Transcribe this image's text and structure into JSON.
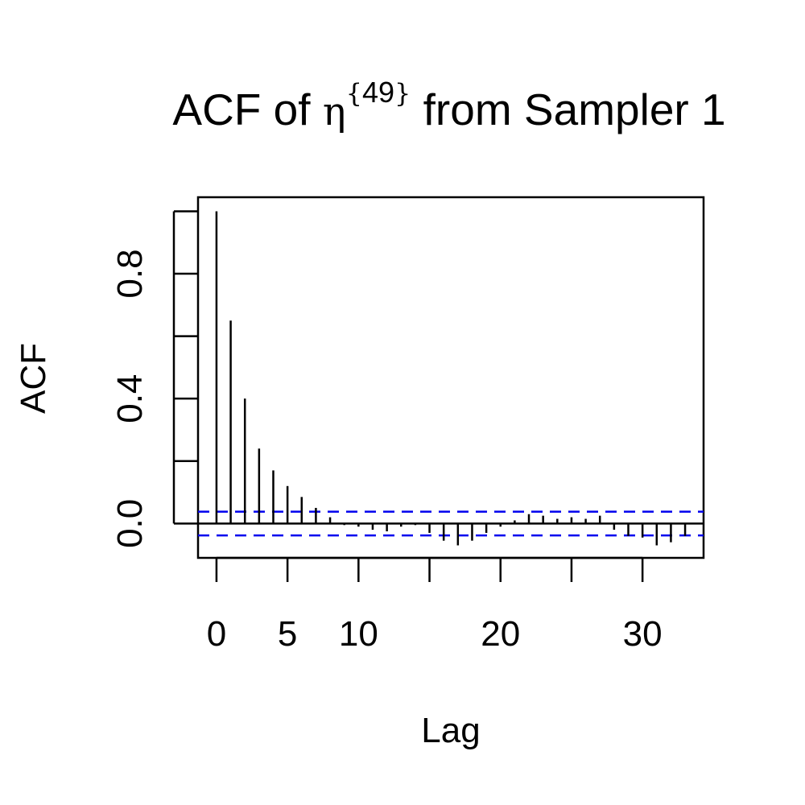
{
  "chart_data": {
    "type": "bar",
    "title": {
      "prefix": "ACF of ",
      "symbol": "η",
      "superscript": "49",
      "brace_open": "{",
      "brace_close": "}",
      "suffix": " from Sampler 1"
    },
    "xlabel": "Lag",
    "ylabel": "ACF",
    "xlim": [
      -1.3,
      34.3
    ],
    "ylim": [
      -0.11,
      1.045
    ],
    "x_ticks": [
      0,
      5,
      10,
      15,
      20,
      25,
      30
    ],
    "x_tick_labels": [
      "0",
      "5",
      "10",
      "",
      "20",
      "",
      "30"
    ],
    "y_ticks": [
      0.0,
      0.2,
      0.4,
      0.6,
      0.8,
      1.0
    ],
    "y_tick_labels": [
      "0.0",
      "",
      "0.4",
      "",
      "0.8",
      ""
    ],
    "confidence_bound": 0.038,
    "colors": {
      "bars": "#000000",
      "confidence": "#0000ee",
      "axis": "#000000"
    },
    "series": [
      {
        "lags": [
          0,
          1,
          2,
          3,
          4,
          5,
          6,
          7,
          8,
          9,
          10,
          11,
          12,
          13,
          14,
          15,
          16,
          17,
          18,
          19,
          20,
          21,
          22,
          23,
          24,
          25,
          26,
          27,
          28,
          29,
          30,
          31,
          32,
          33
        ],
        "values": [
          1.0,
          0.65,
          0.4,
          0.24,
          0.17,
          0.12,
          0.085,
          0.05,
          0.02,
          -0.005,
          -0.01,
          -0.02,
          -0.025,
          -0.01,
          -0.005,
          -0.03,
          -0.055,
          -0.07,
          -0.055,
          -0.03,
          -0.01,
          0.01,
          0.03,
          0.025,
          0.015,
          0.02,
          0.015,
          0.025,
          -0.02,
          -0.04,
          -0.045,
          -0.07,
          -0.06,
          -0.04
        ]
      }
    ]
  }
}
